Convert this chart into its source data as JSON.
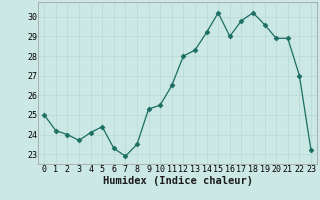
{
  "x": [
    0,
    1,
    2,
    3,
    4,
    5,
    6,
    7,
    8,
    9,
    10,
    11,
    12,
    13,
    14,
    15,
    16,
    17,
    18,
    19,
    20,
    21,
    22,
    23
  ],
  "y": [
    25.0,
    24.2,
    24.0,
    23.7,
    24.1,
    24.4,
    23.3,
    22.9,
    23.5,
    25.3,
    25.5,
    26.5,
    28.0,
    28.3,
    29.2,
    30.2,
    29.0,
    29.8,
    30.2,
    29.6,
    28.9,
    28.9,
    27.0,
    23.2
  ],
  "line_color": "#1a6e62",
  "marker": "D",
  "marker_size": 2.5,
  "bg_color": "#cce8e4",
  "grid_color": "#b8d8d4",
  "xlabel": "Humidex (Indice chaleur)",
  "ylim": [
    22.5,
    30.75
  ],
  "xlim": [
    -0.5,
    23.5
  ],
  "yticks": [
    23,
    24,
    25,
    26,
    27,
    28,
    29,
    30
  ],
  "xticks": [
    0,
    1,
    2,
    3,
    4,
    5,
    6,
    7,
    8,
    9,
    10,
    11,
    12,
    13,
    14,
    15,
    16,
    17,
    18,
    19,
    20,
    21,
    22,
    23
  ],
  "xtick_labels": [
    "0",
    "1",
    "2",
    "3",
    "4",
    "5",
    "6",
    "7",
    "8",
    "9",
    "10",
    "11",
    "12",
    "13",
    "14",
    "15",
    "16",
    "17",
    "18",
    "19",
    "20",
    "21",
    "22",
    "23"
  ],
  "axis_label_fontsize": 7.5,
  "tick_fontsize": 6.0
}
